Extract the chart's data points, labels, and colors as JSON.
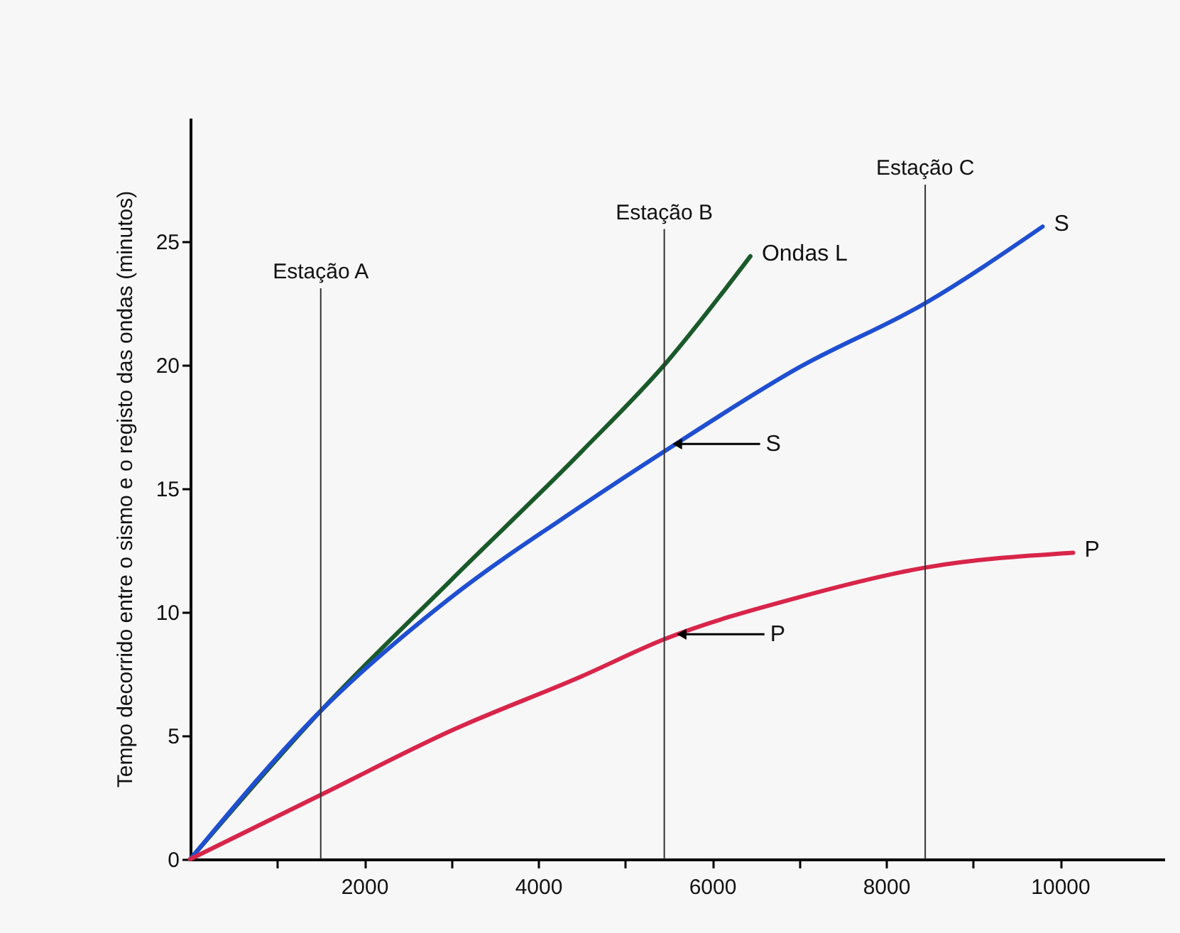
{
  "chart_data": {
    "type": "line",
    "ylabel": "Tempo decorrido entre o sismo e o registo das ondas (minutos)",
    "xlim": [
      0,
      11200
    ],
    "ylim": [
      0,
      30
    ],
    "xticks": [
      {
        "value": 1000,
        "label": null
      },
      2000,
      {
        "value": 3000,
        "label": null
      },
      4000,
      {
        "value": 5000,
        "label": null
      },
      6000,
      {
        "value": 7000,
        "label": null
      },
      8000,
      {
        "value": 9000,
        "label": null
      },
      10000
    ],
    "yticks": [
      0,
      5,
      10,
      15,
      20,
      25
    ],
    "grid": false,
    "legend": false,
    "marker": "none",
    "line_style": "solid",
    "series": [
      {
        "name": "Ondas L",
        "color": "#1a5a2a",
        "x": [
          0,
          1500,
          3000,
          4500,
          5450,
          6440
        ],
        "values": [
          0,
          6,
          11.3,
          16.5,
          20,
          24.4
        ]
      },
      {
        "name": "S",
        "color": "#1f4fd0",
        "x": [
          0,
          1500,
          3000,
          4500,
          5450,
          7000,
          8450,
          9800
        ],
        "values": [
          0,
          6,
          10.6,
          14.3,
          16.5,
          19.9,
          22.5,
          25.6
        ]
      },
      {
        "name": "P",
        "color": "#d8254a",
        "x": [
          0,
          1500,
          3000,
          4500,
          5450,
          7000,
          8450,
          10150
        ],
        "values": [
          0,
          2.6,
          5.2,
          7.4,
          8.9,
          10.6,
          11.8,
          12.4
        ]
      }
    ],
    "ref_lines": [
      {
        "axis": "x",
        "value": 1500,
        "label": "Estação A",
        "color": "#333333"
      },
      {
        "axis": "x",
        "value": 5450,
        "label": "Estação B",
        "color": "#333333"
      },
      {
        "axis": "x",
        "value": 8450,
        "label": "Estação C",
        "color": "#333333"
      }
    ],
    "annotations": [
      {
        "text": "S",
        "x": 5600,
        "y": 16.8
      },
      {
        "text": "P",
        "x": 5650,
        "y": 9.1
      }
    ]
  }
}
